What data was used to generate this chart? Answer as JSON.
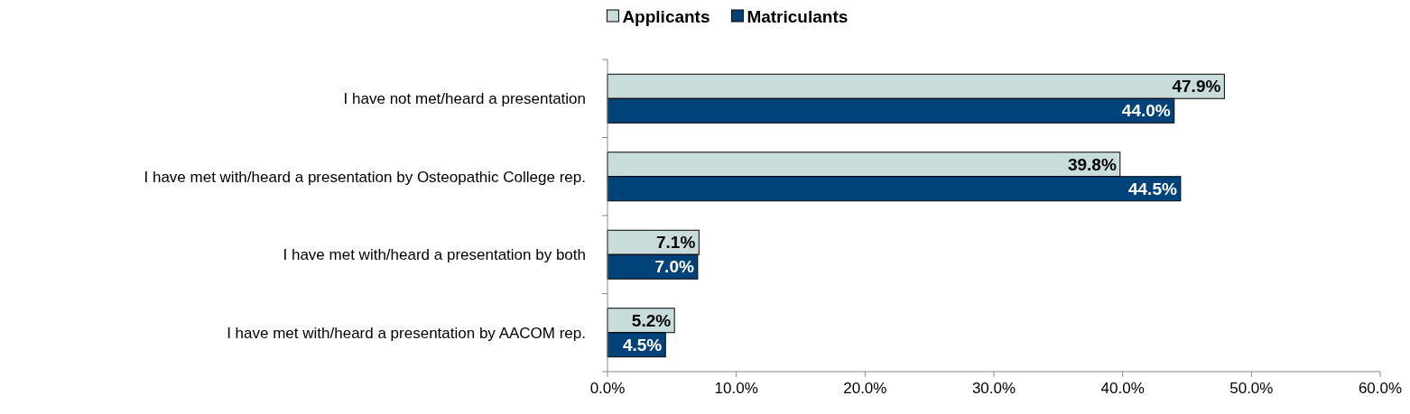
{
  "chart_data": {
    "type": "bar",
    "orientation": "horizontal",
    "categories": [
      "I have not met/heard a presentation",
      "I have met with/heard a presentation by Osteopathic College rep.",
      "I have met with/heard a presentation by both",
      "I have met with/heard a presentation by AACOM rep."
    ],
    "series": [
      {
        "name": "Applicants",
        "color": "#c8dcdc",
        "values": [
          47.9,
          39.8,
          7.1,
          5.2
        ],
        "value_labels": [
          "47.9%",
          "39.8%",
          "7.1%",
          "5.2%"
        ]
      },
      {
        "name": "Matriculants",
        "color": "#00427a",
        "values": [
          44.0,
          44.5,
          7.0,
          4.5
        ],
        "value_labels": [
          "44.0%",
          "44.5%",
          "7.0%",
          "4.5%"
        ]
      }
    ],
    "xlim": [
      0,
      60
    ],
    "xticks": [
      {
        "value": 0,
        "label": "0.0%"
      },
      {
        "value": 10,
        "label": "10.0%"
      },
      {
        "value": 20,
        "label": "20.0%"
      },
      {
        "value": 30,
        "label": "30.0%"
      },
      {
        "value": 40,
        "label": "40.0%"
      },
      {
        "value": 50,
        "label": "50.0%"
      },
      {
        "value": 60,
        "label": "60.0%"
      }
    ],
    "legend": "top",
    "grid": false
  }
}
